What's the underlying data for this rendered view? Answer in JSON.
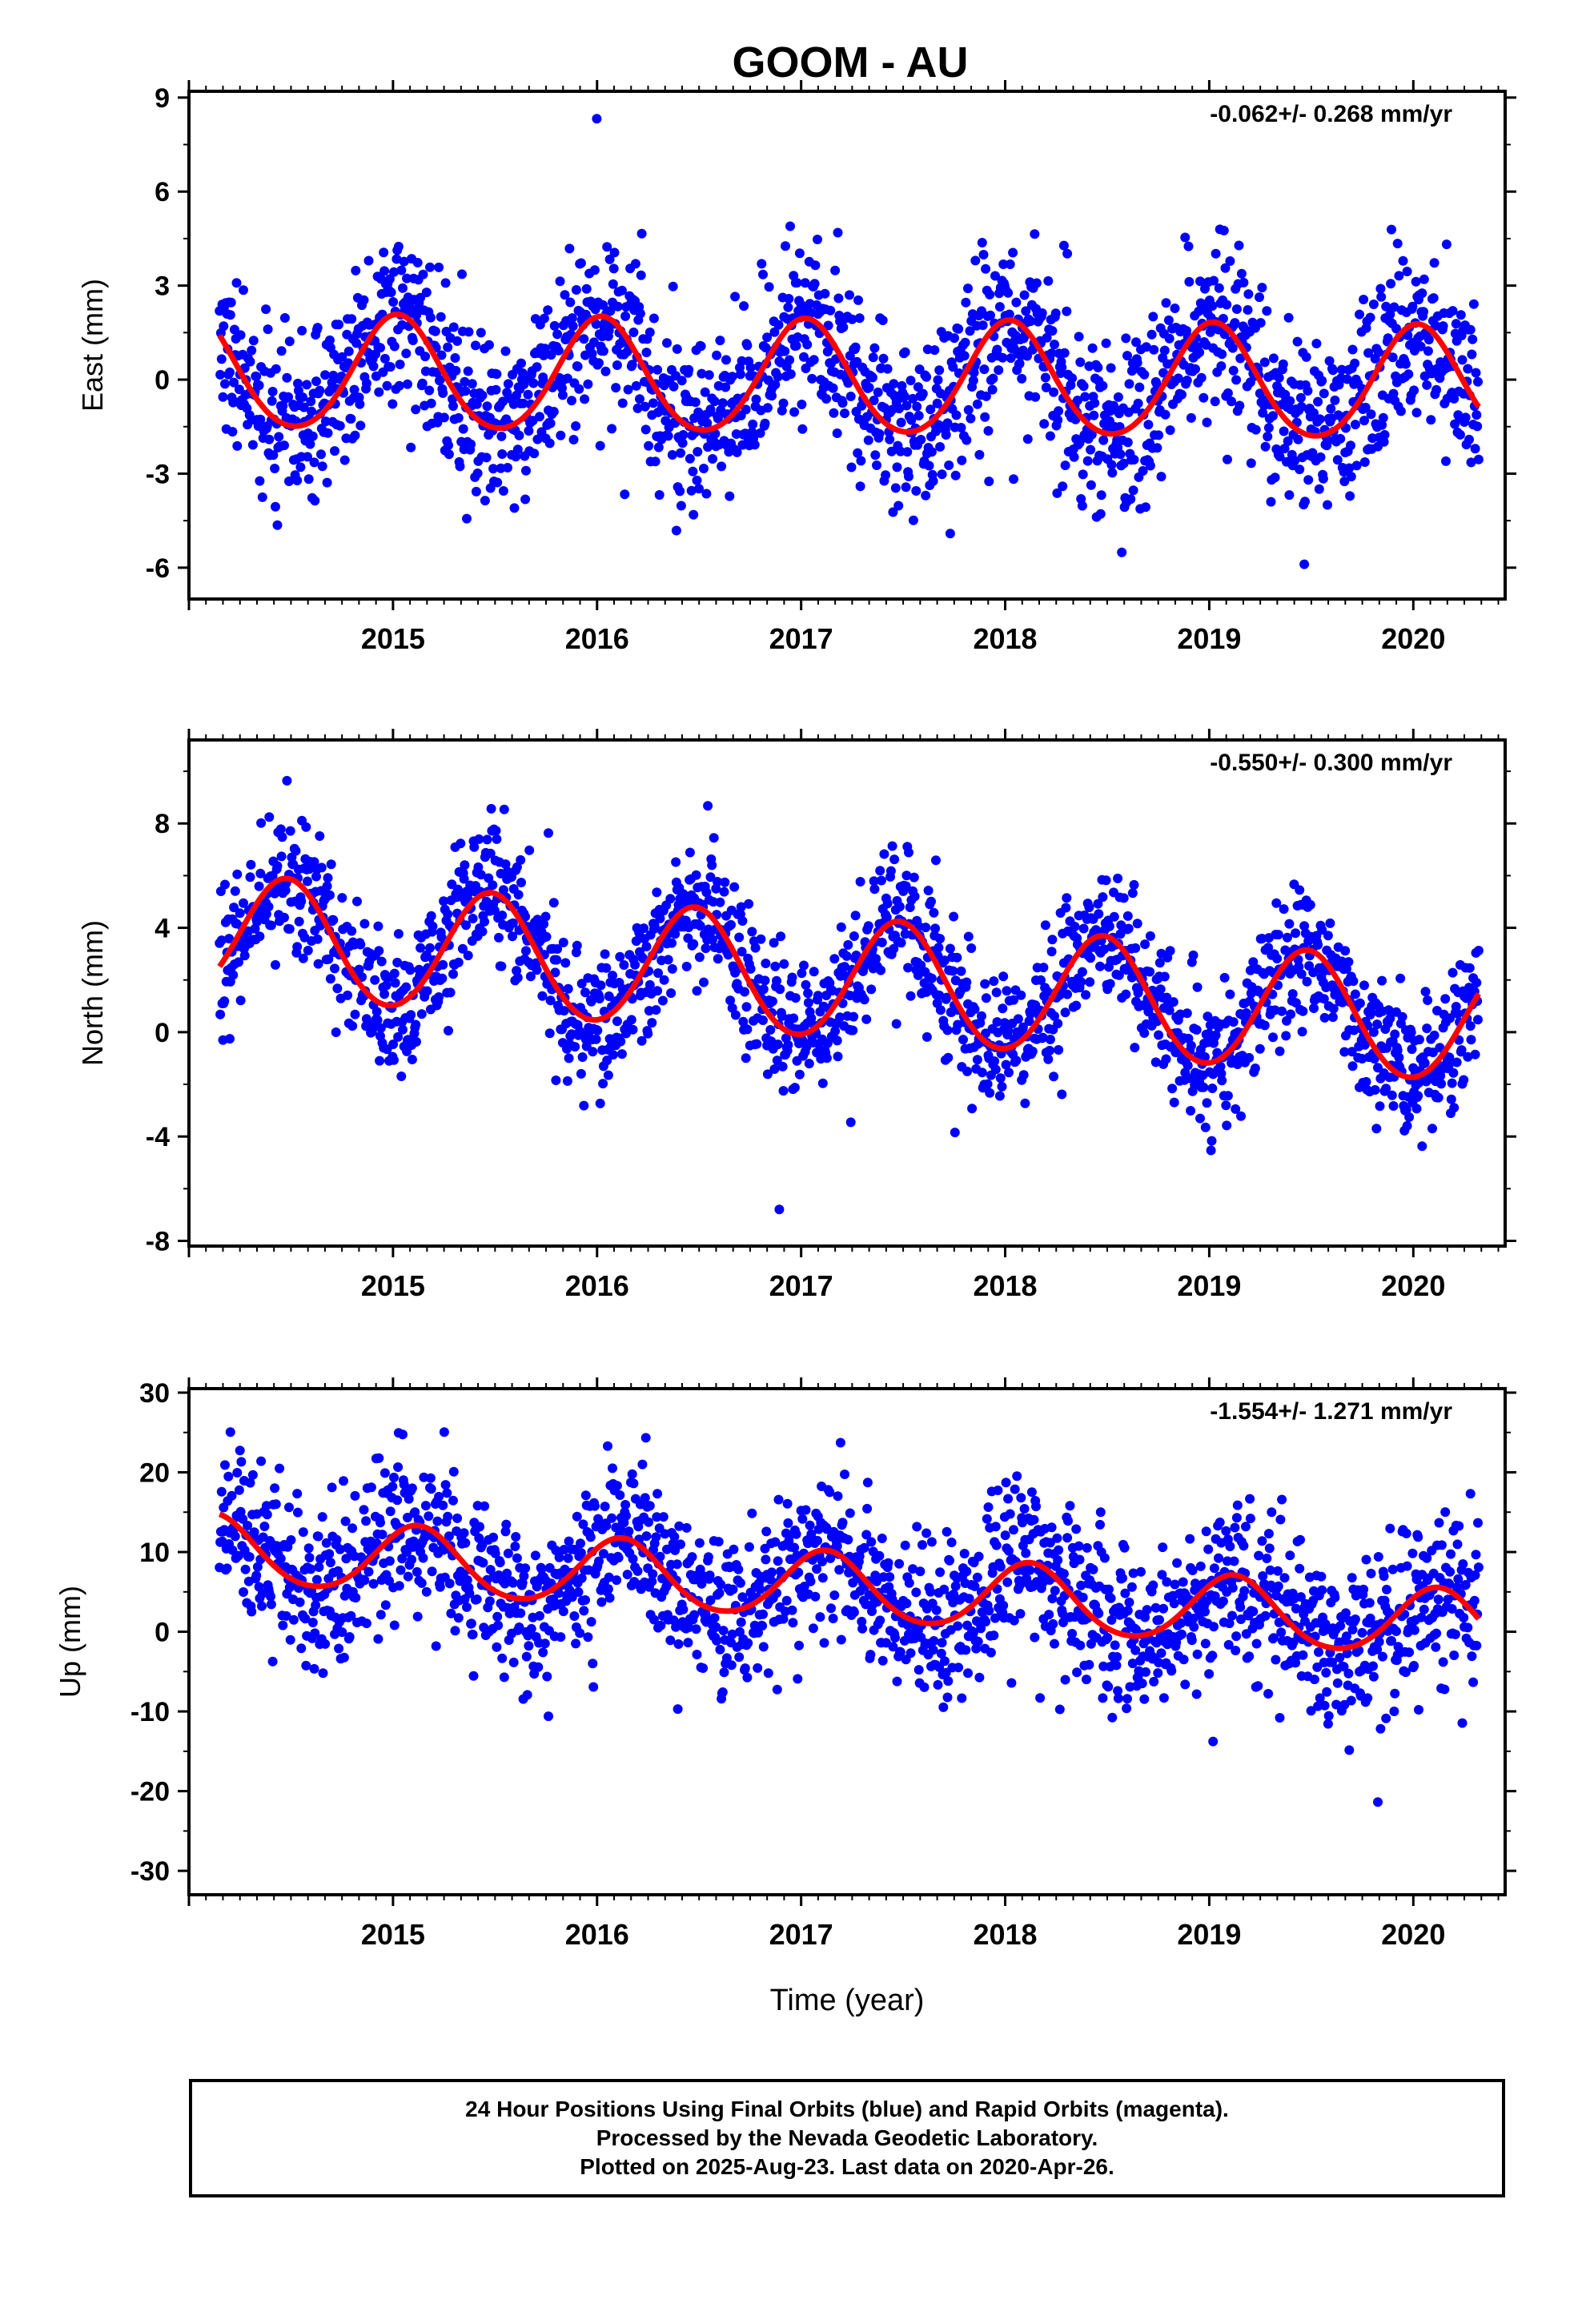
{
  "title": "GOOM - AU",
  "colors": {
    "final_orbits": "#0000ff",
    "fit": "#ff0000",
    "frame": "#000000"
  },
  "footer": {
    "line1": "24 Hour Positions Using Final Orbits (blue) and Rapid Orbits (magenta).",
    "line2": "Processed by the Nevada Geodetic Laboratory.",
    "line3": "Plotted on 2025-Aug-23. Last data on 2020-Apr-26."
  },
  "chart_data": [
    {
      "type": "scatter",
      "name": "east-panel",
      "title": "GOOM - AU",
      "ylabel": "East (mm)",
      "xlabel": "",
      "rate_text": "-0.062+/- 0.268 mm/yr",
      "xlim": [
        2014.0,
        2020.45
      ],
      "ylim": [
        -7,
        9.2
      ],
      "xticks": [
        2015,
        2016,
        2017,
        2018,
        2019,
        2020
      ],
      "yticks": [
        -6,
        -3,
        0,
        3,
        6,
        9
      ],
      "data_range": [
        2014.15,
        2020.32
      ],
      "fit": {
        "mean": 0.0,
        "trend": -0.062,
        "annual_amp": 1.8,
        "peak_phase": 0.02,
        "semiannual_amp": 0.15,
        "noise_sd": 1.4
      },
      "grid": false
    },
    {
      "type": "scatter",
      "name": "north-panel",
      "ylabel": "North (mm)",
      "xlabel": "",
      "rate_text": "-0.550+/- 0.300 mm/yr",
      "xlim": [
        2014.0,
        2020.45
      ],
      "ylim": [
        -8.2,
        11.2
      ],
      "xticks": [
        2015,
        2016,
        2017,
        2018,
        2019,
        2020
      ],
      "yticks": [
        -8,
        -4,
        0,
        4,
        8
      ],
      "data_range": [
        2014.15,
        2020.32
      ],
      "fit": {
        "mean": 2.0,
        "trend": -0.55,
        "annual_amp": 2.3,
        "peak_phase": 0.48,
        "semiannual_amp": 0.1,
        "noise_sd": 1.3
      },
      "grid": false
    },
    {
      "type": "scatter",
      "name": "up-panel",
      "ylabel": "Up (mm)",
      "xlabel": "Time (year)",
      "rate_text": "-1.554+/- 1.271 mm/yr",
      "xlim": [
        2014.0,
        2020.45
      ],
      "ylim": [
        -33,
        30.5
      ],
      "xticks": [
        2015,
        2016,
        2017,
        2018,
        2019,
        2020
      ],
      "yticks": [
        -30,
        -20,
        -10,
        0,
        10,
        20,
        30
      ],
      "data_range": [
        2014.15,
        2020.32
      ],
      "fit": {
        "mean": 5.5,
        "trend": -1.554,
        "annual_amp": 4.2,
        "peak_phase": 0.12,
        "semiannual_amp": 0.4,
        "noise_sd": 5.0
      },
      "grid": false
    }
  ]
}
